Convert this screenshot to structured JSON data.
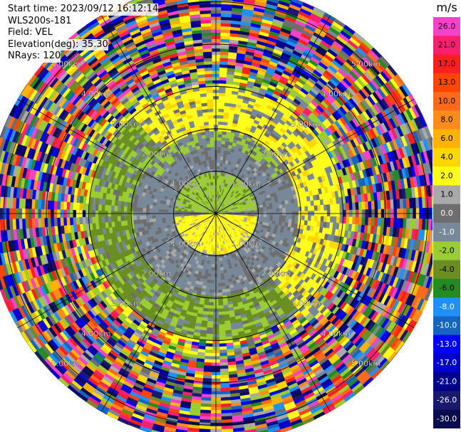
{
  "meta": {
    "start_time": "Start time: 2023/09/12 16:12:14",
    "instrument": "WLS200s-181",
    "field": "Field: VEL",
    "elevation": "Elevation(deg): 35.30",
    "nrays": "NRays: 120"
  },
  "colorbar": {
    "unit": "m/s",
    "bins": [
      {
        "label": "26.0",
        "color": "#f542c8"
      },
      {
        "label": "21.0",
        "color": "#ff1f6e"
      },
      {
        "label": "17.0",
        "color": "#ff1f1f"
      },
      {
        "label": "13.0",
        "color": "#ff4500"
      },
      {
        "label": "10.0",
        "color": "#ff6a1a"
      },
      {
        "label": "8.0",
        "color": "#ff8c1a"
      },
      {
        "label": "6.0",
        "color": "#ffb300"
      },
      {
        "label": "4.0",
        "color": "#ffd700"
      },
      {
        "label": "2.0",
        "color": "#ffff1a"
      },
      {
        "label": "1.0",
        "color": "#a9a9a9"
      },
      {
        "label": "0.0",
        "color": "#6e6e6e"
      },
      {
        "label": "-1.0",
        "color": "#778899"
      },
      {
        "label": "-2.0",
        "color": "#9acd32"
      },
      {
        "label": "-4.0",
        "color": "#6b8e23"
      },
      {
        "label": "-6.0",
        "color": "#228b22"
      },
      {
        "label": "-8.0",
        "color": "#1e90ff"
      },
      {
        "label": "-10.0",
        "color": "#1565c0"
      },
      {
        "label": "-13.0",
        "color": "#0000ff"
      },
      {
        "label": "-17.0",
        "color": "#0000cd"
      },
      {
        "label": "-21.0",
        "color": "#00008b"
      },
      {
        "label": "-26.0",
        "color": "#191970"
      },
      {
        "label": "-30.0",
        "color": "#0b0b50"
      }
    ]
  },
  "chart_data": {
    "type": "heatmap",
    "projection": "polar-ppi",
    "field": "VEL",
    "units": "m/s",
    "nrays": 120,
    "range_rings": [
      {
        "label": "1.00km",
        "range_km": 1.0
      },
      {
        "label": "2.00km",
        "range_km": 2.0
      },
      {
        "label": "3.00km",
        "range_km": 3.0
      },
      {
        "label": "4.00km",
        "range_km": 4.0
      },
      {
        "label": "5.00km",
        "range_km": 5.0
      }
    ],
    "max_range_km": 5.4,
    "spoke_azimuths_deg": [
      0,
      30,
      60,
      90,
      120,
      150,
      180,
      210,
      240,
      270,
      300,
      330
    ],
    "ring_label_azimuths_deg": [
      45,
      135,
      225,
      315
    ],
    "regions": [
      {
        "range_km": [
          0,
          0.9
        ],
        "azimuth_deg": [
          270,
          90
        ],
        "value_ms": -2.0,
        "note": "green near center, north"
      },
      {
        "range_km": [
          0,
          0.9
        ],
        "azimuth_deg": [
          90,
          270
        ],
        "value_ms": 2.0,
        "note": "yellow near center, south"
      },
      {
        "range_km": [
          1.0,
          2.0
        ],
        "value_ms": 0.0,
        "note": "gray ring"
      },
      {
        "range_km": [
          2.0,
          3.0
        ],
        "value_ms": 2.0,
        "note": "yellow band"
      },
      {
        "range_km": [
          2.0,
          3.0
        ],
        "value_ms": -4.0,
        "note": "olive green band"
      },
      {
        "range_km": [
          3.0,
          5.4
        ],
        "value_ms": "noise",
        "note": "random colors"
      }
    ]
  }
}
